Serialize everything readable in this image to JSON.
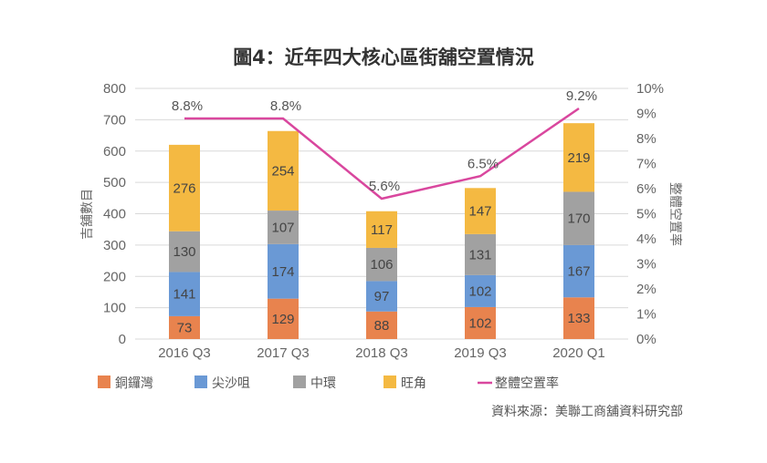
{
  "chart_data": {
    "type": "bar",
    "subtype": "stacked-bar-with-line",
    "title": "圖4：近年四大核心區街舖空置情況",
    "xlabel": "",
    "ylabel": "吉舖數目",
    "y2label": "整體空置率",
    "categories": [
      "2016 Q3",
      "2017 Q3",
      "2018 Q3",
      "2019 Q3",
      "2020 Q1"
    ],
    "ylim": [
      0,
      800
    ],
    "yticks": [
      0,
      100,
      200,
      300,
      400,
      500,
      600,
      700,
      800
    ],
    "y2lim": [
      0,
      10
    ],
    "y2ticks": [
      "0%",
      "1%",
      "2%",
      "3%",
      "4%",
      "5%",
      "6%",
      "7%",
      "8%",
      "9%",
      "10%"
    ],
    "grid": true,
    "series": [
      {
        "name": "銅鑼灣",
        "type": "bar",
        "color": "#E8834E",
        "values": [
          73,
          129,
          88,
          102,
          133
        ]
      },
      {
        "name": "尖沙咀",
        "type": "bar",
        "color": "#6A99D5",
        "values": [
          141,
          174,
          97,
          102,
          167
        ]
      },
      {
        "name": "中環",
        "type": "bar",
        "color": "#A1A1A1",
        "values": [
          130,
          107,
          106,
          131,
          170
        ]
      },
      {
        "name": "旺角",
        "type": "bar",
        "color": "#F4B942",
        "values": [
          276,
          254,
          117,
          147,
          219
        ]
      },
      {
        "name": "整體空置率",
        "type": "line",
        "axis": "right",
        "color": "#D9479E",
        "values": [
          8.8,
          8.8,
          5.6,
          6.5,
          9.2
        ],
        "labels": [
          "8.8%",
          "8.8%",
          "5.6%",
          "6.5%",
          "9.2%"
        ]
      }
    ],
    "legend_position": "bottom",
    "source": "資料來源：美聯工商舖資料研究部"
  }
}
